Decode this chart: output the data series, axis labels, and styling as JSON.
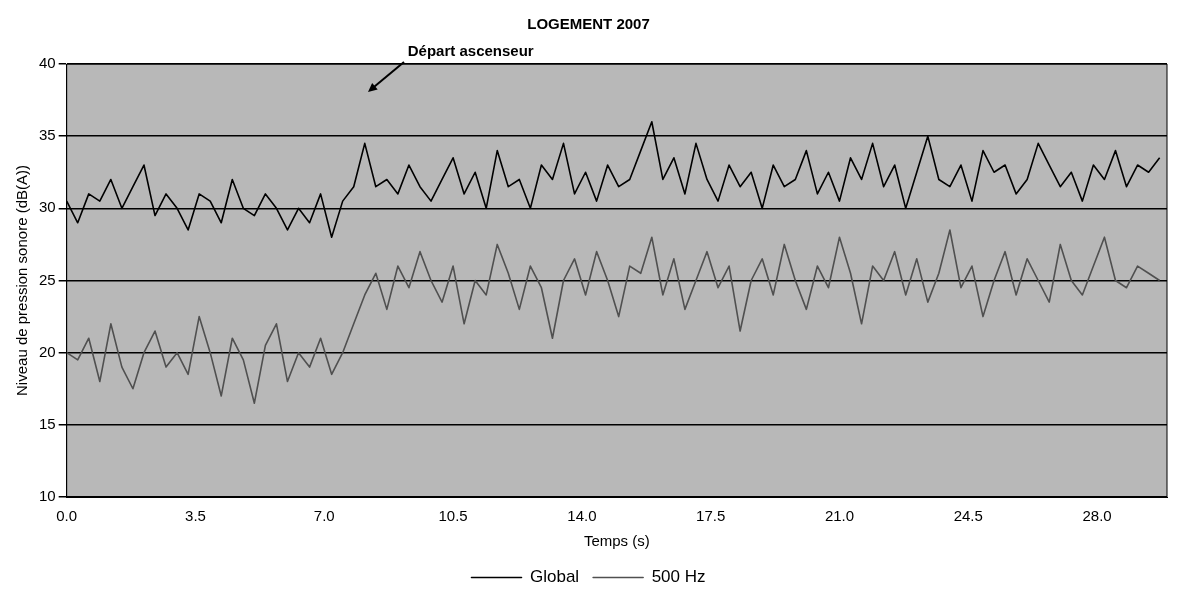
{
  "chart_data": {
    "type": "line",
    "title": "LOGEMENT 2007",
    "xlabel": "Temps (s)",
    "ylabel": "Niveau de pression sonore (dB(A))",
    "x": [
      0,
      0.3,
      0.6,
      0.9,
      1.2,
      1.5,
      1.8,
      2.1,
      2.4,
      2.7,
      3,
      3.3,
      3.6,
      3.9,
      4.2,
      4.5,
      4.8,
      5.1,
      5.4,
      5.7,
      6,
      6.3,
      6.6,
      6.9,
      7.2,
      7.5,
      7.8,
      8.1,
      8.4,
      8.7,
      9,
      9.3,
      9.6,
      9.9,
      10.2,
      10.5,
      10.8,
      11.1,
      11.4,
      11.7,
      12,
      12.3,
      12.6,
      12.9,
      13.2,
      13.5,
      13.8,
      14.1,
      14.4,
      14.7,
      15,
      15.3,
      15.6,
      15.9,
      16.2,
      16.5,
      16.8,
      17.1,
      17.4,
      17.7,
      18,
      18.3,
      18.6,
      18.9,
      19.2,
      19.5,
      19.8,
      20.1,
      20.4,
      20.7,
      21,
      21.3,
      21.6,
      21.9,
      22.2,
      22.5,
      22.8,
      23.1,
      23.4,
      23.7,
      24,
      24.3,
      24.6,
      24.9,
      25.2,
      25.5,
      25.8,
      26.1,
      26.4,
      26.7,
      27,
      27.3,
      27.6,
      27.9,
      28.2,
      28.5,
      28.8,
      29.1,
      29.4,
      29.7
    ],
    "series": [
      {
        "name": "Global",
        "color": "#000000",
        "values": [
          30.5,
          29,
          31,
          30.5,
          32,
          30,
          31.5,
          33,
          29.5,
          31,
          30,
          28.5,
          31,
          30.5,
          29,
          32,
          30,
          29.5,
          31,
          30,
          28.5,
          30,
          29,
          31,
          28,
          30.5,
          31.5,
          34.5,
          31.5,
          32,
          31,
          33,
          31.5,
          30.5,
          32,
          33.5,
          31,
          32.5,
          30,
          34,
          31.5,
          32,
          30,
          33,
          32,
          34.5,
          31,
          32.5,
          30.5,
          33,
          31.5,
          32,
          34,
          36,
          32,
          33.5,
          31,
          34.5,
          32,
          30.5,
          33,
          31.5,
          32.5,
          30,
          33,
          31.5,
          32,
          34,
          31,
          32.5,
          30.5,
          33.5,
          32,
          34.5,
          31.5,
          33,
          30,
          32.5,
          35,
          32,
          31.5,
          33,
          30.5,
          34,
          32.5,
          33,
          31,
          32,
          34.5,
          33,
          31.5,
          32.5,
          30.5,
          33,
          32,
          34,
          31.5,
          33,
          32.5,
          33.5
        ]
      },
      {
        "name": "500 Hz",
        "color": "#505050",
        "values": [
          20,
          19.5,
          21,
          18,
          22,
          19,
          17.5,
          20,
          21.5,
          19,
          20,
          18.5,
          22.5,
          20,
          17,
          21,
          19.5,
          16.5,
          20.5,
          22,
          18,
          20,
          19,
          21,
          18.5,
          20,
          22,
          24,
          25.5,
          23,
          26,
          24.5,
          27,
          25,
          23.5,
          26,
          22,
          25,
          24,
          27.5,
          25.5,
          23,
          26,
          24.5,
          21,
          25,
          26.5,
          24,
          27,
          25,
          22.5,
          26,
          25.5,
          28,
          24,
          26.5,
          23,
          25,
          27,
          24.5,
          26,
          21.5,
          25,
          26.5,
          24,
          27.5,
          25,
          23,
          26,
          24.5,
          28,
          25.5,
          22,
          26,
          25,
          27,
          24,
          26.5,
          23.5,
          25.5,
          28.5,
          24.5,
          26,
          22.5,
          25,
          27,
          24,
          26.5,
          25,
          23.5,
          27.5,
          25,
          24,
          26,
          28,
          25,
          24.5,
          26,
          25.5,
          25
        ]
      }
    ],
    "xlim": [
      0,
      29.9
    ],
    "xticks": [
      {
        "value": 0,
        "label": "0.0"
      },
      {
        "value": 3.5,
        "label": "3.5"
      },
      {
        "value": 7,
        "label": "7.0"
      },
      {
        "value": 10.5,
        "label": "10.5"
      },
      {
        "value": 14,
        "label": "14.0"
      },
      {
        "value": 17.5,
        "label": "17.5"
      },
      {
        "value": 21,
        "label": "21.0"
      },
      {
        "value": 24.5,
        "label": "24.5"
      },
      {
        "value": 28,
        "label": "28.0"
      }
    ],
    "ylim": [
      10,
      40
    ],
    "yticks": [
      10,
      15,
      20,
      25,
      30,
      35,
      40
    ],
    "grid": "y",
    "legend": "bottom",
    "marker": "none",
    "line_style": "solid",
    "annotations": [
      "Départ ascenseur"
    ]
  }
}
